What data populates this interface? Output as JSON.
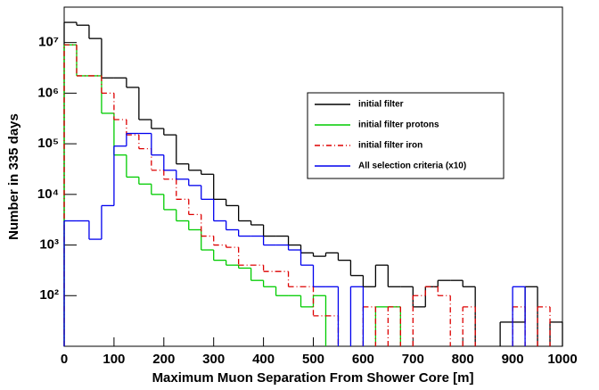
{
  "chart_data": {
    "type": "histogram",
    "xlabel": "Maximum Muon Separation From Shower Core [m]",
    "ylabel": "Number in 335 days",
    "log_y": true,
    "bins": [
      0,
      25,
      50,
      75,
      100,
      125,
      150,
      175,
      200,
      225,
      250,
      275,
      300,
      325,
      350,
      375,
      400,
      425,
      450,
      475,
      500,
      525,
      550,
      575,
      600,
      625,
      650,
      675,
      700,
      725,
      750,
      775,
      800,
      825,
      850,
      875,
      900,
      925,
      950,
      975,
      1000
    ],
    "xlim": [
      0,
      1000
    ],
    "xticks": [
      0,
      100,
      200,
      300,
      400,
      500,
      600,
      700,
      800,
      900,
      1000
    ],
    "ylim": [
      10,
      50000000
    ],
    "yticks": [
      {
        "value": 100,
        "label": "10²"
      },
      {
        "value": 1000,
        "label": "10³"
      },
      {
        "value": 10000,
        "label": "10⁴"
      },
      {
        "value": 100000,
        "label": "10⁵"
      },
      {
        "value": 1000000,
        "label": "10⁶"
      },
      {
        "value": 10000000,
        "label": "10⁷"
      }
    ],
    "series": [
      {
        "name": "initial filter",
        "color": "#000000",
        "line_style": "solid",
        "values": [
          25000000,
          22000000,
          12000000,
          2000000,
          2000000,
          1300000,
          300000,
          200000,
          150000,
          40000,
          30000,
          25000,
          8000,
          6000,
          3000,
          2500,
          1500,
          1500,
          1000,
          700,
          600,
          700,
          500,
          250,
          150,
          400,
          150,
          150,
          60,
          150,
          200,
          200,
          150,
          null,
          null,
          30,
          30,
          150,
          null,
          30
        ]
      },
      {
        "name": "initial filter protons",
        "color": "#00cc00",
        "line_style": "solid",
        "values": [
          9000000,
          2200000,
          2200000,
          400000,
          60000,
          22000,
          16000,
          10000,
          5000,
          3000,
          2000,
          800,
          500,
          400,
          350,
          200,
          150,
          100,
          100,
          60,
          100,
          null,
          null,
          null,
          null,
          60,
          60,
          null,
          null,
          null,
          null,
          null,
          null,
          null,
          null,
          null,
          null,
          null,
          null,
          null
        ]
      },
      {
        "name": "initial filter iron",
        "color": "#dd0000",
        "line_style": "dash-dot",
        "values": [
          9000000,
          2200000,
          2200000,
          1000000,
          300000,
          150000,
          80000,
          30000,
          20000,
          8000,
          4000,
          1500,
          1000,
          900,
          400,
          400,
          300,
          300,
          150,
          150,
          40,
          40,
          null,
          null,
          60,
          null,
          60,
          null,
          100,
          150,
          100,
          null,
          60,
          null,
          null,
          null,
          60,
          null,
          60,
          null
        ]
      },
      {
        "name": "All selection criteria (x10)",
        "color": "#0000ee",
        "line_style": "solid",
        "values": [
          3000,
          3000,
          1300,
          6000,
          90000,
          160000,
          160000,
          60000,
          30000,
          20000,
          15000,
          8000,
          3000,
          2000,
          1500,
          1500,
          1000,
          1000,
          800,
          400,
          150,
          150,
          null,
          150,
          null,
          null,
          null,
          null,
          null,
          null,
          null,
          null,
          null,
          null,
          null,
          null,
          150,
          null,
          null,
          null
        ]
      }
    ]
  }
}
